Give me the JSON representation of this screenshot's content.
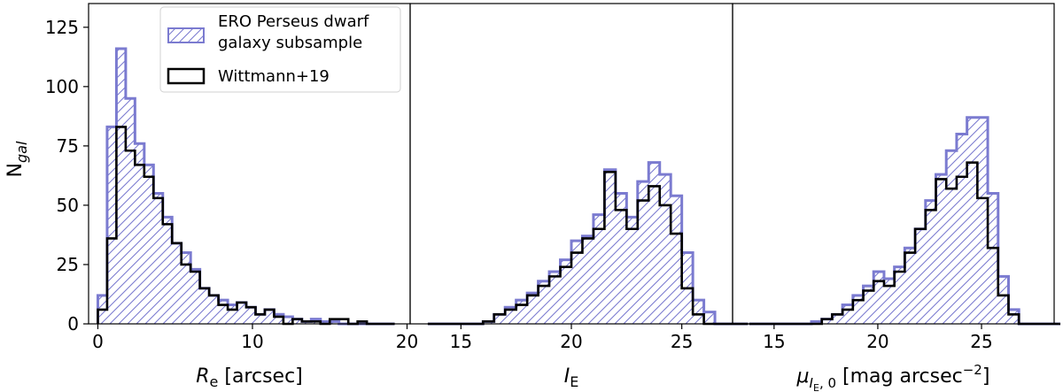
{
  "colors": {
    "ero": "#7b7bd0",
    "wittmann": "#000000"
  },
  "legend": {
    "ero_line1": "ERO Perseus dwarf",
    "ero_line2": "galaxy subsample",
    "wittmann": "Wittmann+19"
  },
  "ylabel": "N",
  "ylabel_sub": "gal",
  "chart_data": [
    {
      "type": "bar",
      "panel": "Re",
      "xlabel_main": "R",
      "xlabel_sub": "e",
      "xlabel_rest": " [arcsec]",
      "xlim": [
        -0.6,
        20.2
      ],
      "ylim": [
        0,
        135
      ],
      "xticks": [
        0,
        10,
        20
      ],
      "yticks": [
        0,
        25,
        50,
        75,
        100,
        125
      ],
      "bin_start": 0,
      "bin_width": 0.6,
      "series": [
        {
          "name": "ERO Perseus dwarf galaxy subsample",
          "values": [
            12,
            83,
            116,
            95,
            76,
            67,
            55,
            45,
            34,
            30,
            23,
            15,
            12,
            10,
            8,
            9,
            7,
            4,
            6,
            4,
            3,
            2,
            1,
            2,
            1,
            1,
            0,
            0,
            0,
            0,
            0,
            0
          ]
        },
        {
          "name": "Wittmann+19",
          "values": [
            6,
            36,
            83,
            73,
            67,
            62,
            53,
            42,
            34,
            25,
            22,
            15,
            12,
            8,
            6,
            9,
            7,
            4,
            6,
            3,
            0,
            2,
            1,
            1,
            0,
            2,
            2,
            0,
            1,
            0,
            0,
            0
          ]
        }
      ]
    },
    {
      "type": "bar",
      "panel": "IE",
      "xlabel_main": "I",
      "xlabel_sub": "E",
      "xlabel_rest": "",
      "xlim": [
        12.7,
        27.3
      ],
      "ylim": [
        0,
        135
      ],
      "xticks": [
        15,
        20,
        25
      ],
      "bin_start": 13.5,
      "bin_width": 0.5,
      "series": [
        {
          "name": "ERO Perseus dwarf galaxy subsample",
          "values": [
            0,
            0,
            0,
            0,
            0,
            1,
            4,
            7,
            10,
            13,
            18,
            22,
            27,
            35,
            37,
            46,
            65,
            55,
            45,
            60,
            68,
            63,
            54,
            30,
            10,
            5,
            0,
            0,
            0
          ]
        },
        {
          "name": "Wittmann+19",
          "values": [
            0,
            0,
            0,
            0,
            0,
            1,
            4,
            6,
            8,
            12,
            16,
            20,
            24,
            30,
            36,
            40,
            64,
            48,
            40,
            52,
            58,
            50,
            38,
            15,
            4,
            0,
            0,
            0,
            0
          ]
        }
      ]
    },
    {
      "type": "bar",
      "panel": "mu",
      "xlabel_main": "μ",
      "xlabel_sub": "I",
      "xlabel_subsub": "E",
      "xlabel_sub_rest": ", 0",
      "xlabel_rest": " [mag arcsec",
      "xlabel_sup": "−2",
      "xlabel_close": "]",
      "xlim": [
        13,
        28.5
      ],
      "ylim": [
        0,
        135
      ],
      "xticks": [
        15,
        20,
        25
      ],
      "bin_start": 13.8,
      "bin_width": 0.5,
      "series": [
        {
          "name": "ERO Perseus dwarf galaxy subsample",
          "values": [
            0,
            0,
            0,
            0,
            0,
            0,
            1,
            2,
            4,
            8,
            12,
            16,
            22,
            19,
            24,
            32,
            40,
            52,
            63,
            73,
            80,
            87,
            87,
            55,
            20,
            6,
            0,
            0,
            0,
            0
          ]
        },
        {
          "name": "Wittmann+19",
          "values": [
            0,
            0,
            0,
            0,
            0,
            0,
            0,
            2,
            4,
            6,
            10,
            14,
            18,
            16,
            22,
            30,
            40,
            48,
            61,
            57,
            62,
            68,
            53,
            32,
            12,
            4,
            0,
            0,
            0,
            0
          ]
        }
      ]
    }
  ]
}
